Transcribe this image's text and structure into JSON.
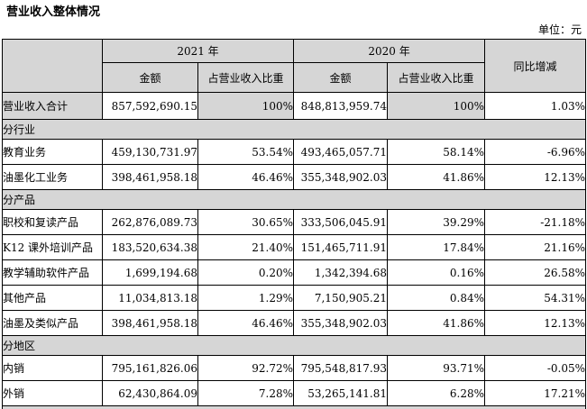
{
  "page": {
    "title": "营业收入整体情况",
    "unit_note": "单位：元"
  },
  "table": {
    "header": {
      "year_2021": "2021 年",
      "year_2020": "2020 年",
      "yoy": "同比增减",
      "amount_2021": "金额",
      "proportion_2021": "占营业收入比重",
      "amount_2020": "金额",
      "proportion_2020": "占营业收入比重"
    },
    "rows": [
      {
        "type": "total",
        "label": "营业收入合计",
        "amount_2021": "857,592,690.15",
        "pct_2021": "100%",
        "amount_2020": "848,813,959.74",
        "pct_2020": "100%",
        "yoy": "1.03%"
      },
      {
        "type": "section",
        "label": "分行业"
      },
      {
        "type": "data",
        "label": "教育业务",
        "amount_2021": "459,130,731.97",
        "pct_2021": "53.54%",
        "amount_2020": "493,465,057.71",
        "pct_2020": "58.14%",
        "yoy": "-6.96%"
      },
      {
        "type": "data",
        "label": "油墨化工业务",
        "amount_2021": "398,461,958.18",
        "pct_2021": "46.46%",
        "amount_2020": "355,348,902.03",
        "pct_2020": "41.86%",
        "yoy": "12.13%"
      },
      {
        "type": "section",
        "label": "分产品"
      },
      {
        "type": "data",
        "label": "职校和复读产品",
        "amount_2021": "262,876,089.73",
        "pct_2021": "30.65%",
        "amount_2020": "333,506,045.91",
        "pct_2020": "39.29%",
        "yoy": "-21.18%"
      },
      {
        "type": "data",
        "label": "K12 课外培训产品",
        "amount_2021": "183,520,634.38",
        "pct_2021": "21.40%",
        "amount_2020": "151,465,711.91",
        "pct_2020": "17.84%",
        "yoy": "21.16%"
      },
      {
        "type": "data",
        "label": "教学辅助软件产品",
        "amount_2021": "1,699,194.68",
        "pct_2021": "0.20%",
        "amount_2020": "1,342,394.68",
        "pct_2020": "0.16%",
        "yoy": "26.58%"
      },
      {
        "type": "data",
        "label": "其他产品",
        "amount_2021": "11,034,813.18",
        "pct_2021": "1.29%",
        "amount_2020": "7,150,905.21",
        "pct_2020": "0.84%",
        "yoy": "54.31%"
      },
      {
        "type": "data",
        "label": "油墨及类似产品",
        "amount_2021": "398,461,958.18",
        "pct_2021": "46.46%",
        "amount_2020": "355,348,902.03",
        "pct_2020": "41.86%",
        "yoy": "12.13%"
      },
      {
        "type": "section",
        "label": "分地区"
      },
      {
        "type": "data",
        "label": "内销",
        "amount_2021": "795,161,826.06",
        "pct_2021": "92.72%",
        "amount_2020": "795,548,817.93",
        "pct_2020": "93.71%",
        "yoy": "-0.05%"
      },
      {
        "type": "data",
        "label": "外销",
        "amount_2021": "62,430,864.09",
        "pct_2021": "7.28%",
        "amount_2020": "53,265,141.81",
        "pct_2020": "6.28%",
        "yoy": "17.21%"
      },
      {
        "type": "section_partial",
        "label": ""
      }
    ]
  },
  "colors": {
    "header_fill": "#d6d6d6",
    "border": "#000000",
    "text": "#000000",
    "background": "#ffffff"
  }
}
